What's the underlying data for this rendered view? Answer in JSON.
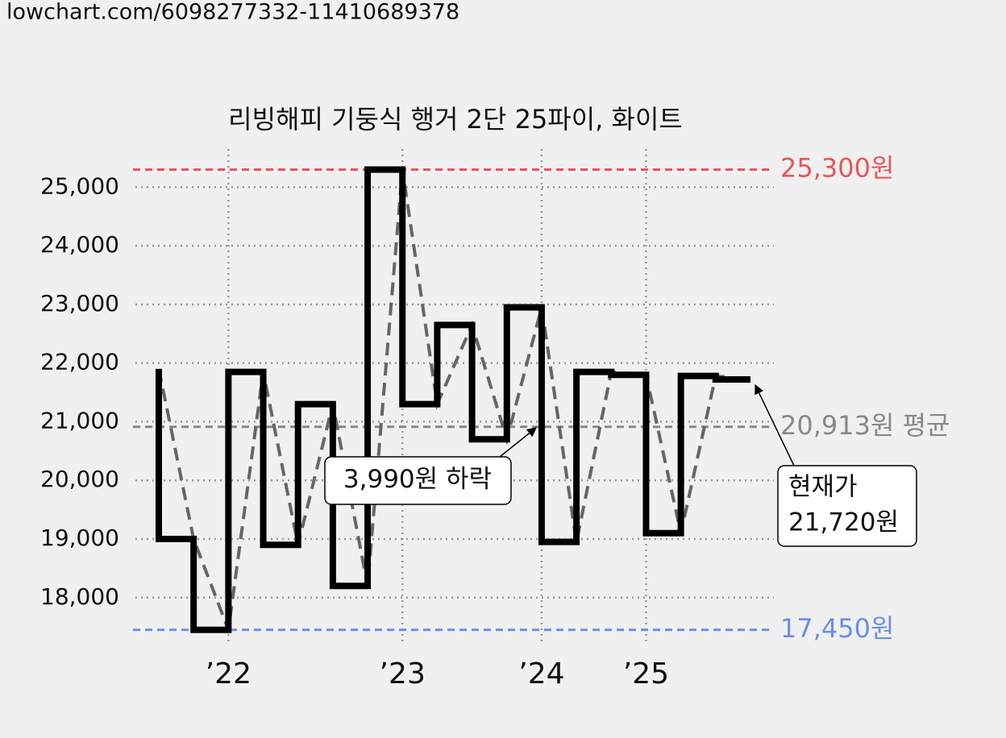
{
  "header": "lowchart.com/6098277332-11410689378",
  "chart_data": {
    "type": "step-line",
    "title": "리빙해피 기둥식 행거 2단 25파이, 화이트",
    "categories": [
      null,
      null,
      "’22",
      null,
      null,
      null,
      null,
      "’23",
      null,
      null,
      null,
      "’24",
      null,
      null,
      "’25",
      null,
      null,
      null
    ],
    "values": [
      21900,
      19000,
      17450,
      21850,
      18900,
      21300,
      18200,
      25300,
      21300,
      22650,
      20700,
      22950,
      18950,
      21850,
      21800,
      19100,
      21780,
      21720
    ],
    "color": "#000000",
    "trend_color": "#666666",
    "ylim": [
      17200,
      25650
    ],
    "yticks": [
      {
        "value": 18000,
        "label": "18,000"
      },
      {
        "value": 19000,
        "label": "19,000"
      },
      {
        "value": 20000,
        "label": "20,000"
      },
      {
        "value": 21000,
        "label": "21,000"
      },
      {
        "value": 22000,
        "label": "22,000"
      },
      {
        "value": 23000,
        "label": "23,000"
      },
      {
        "value": 24000,
        "label": "24,000"
      },
      {
        "value": 25000,
        "label": "25,000"
      }
    ],
    "grid": true,
    "reference_lines": [
      {
        "value": 25300,
        "label": "25,300원",
        "color": "#e8555a"
      },
      {
        "value": 17450,
        "label": "17,450원",
        "color": "#6b8ee8"
      },
      {
        "value": 20913,
        "label": "20,913원 평균",
        "color": "#888888"
      }
    ],
    "annotations": [
      {
        "text": [
          "3,990원 하락"
        ]
      },
      {
        "text": [
          "현재가",
          "21,720원"
        ]
      }
    ]
  }
}
